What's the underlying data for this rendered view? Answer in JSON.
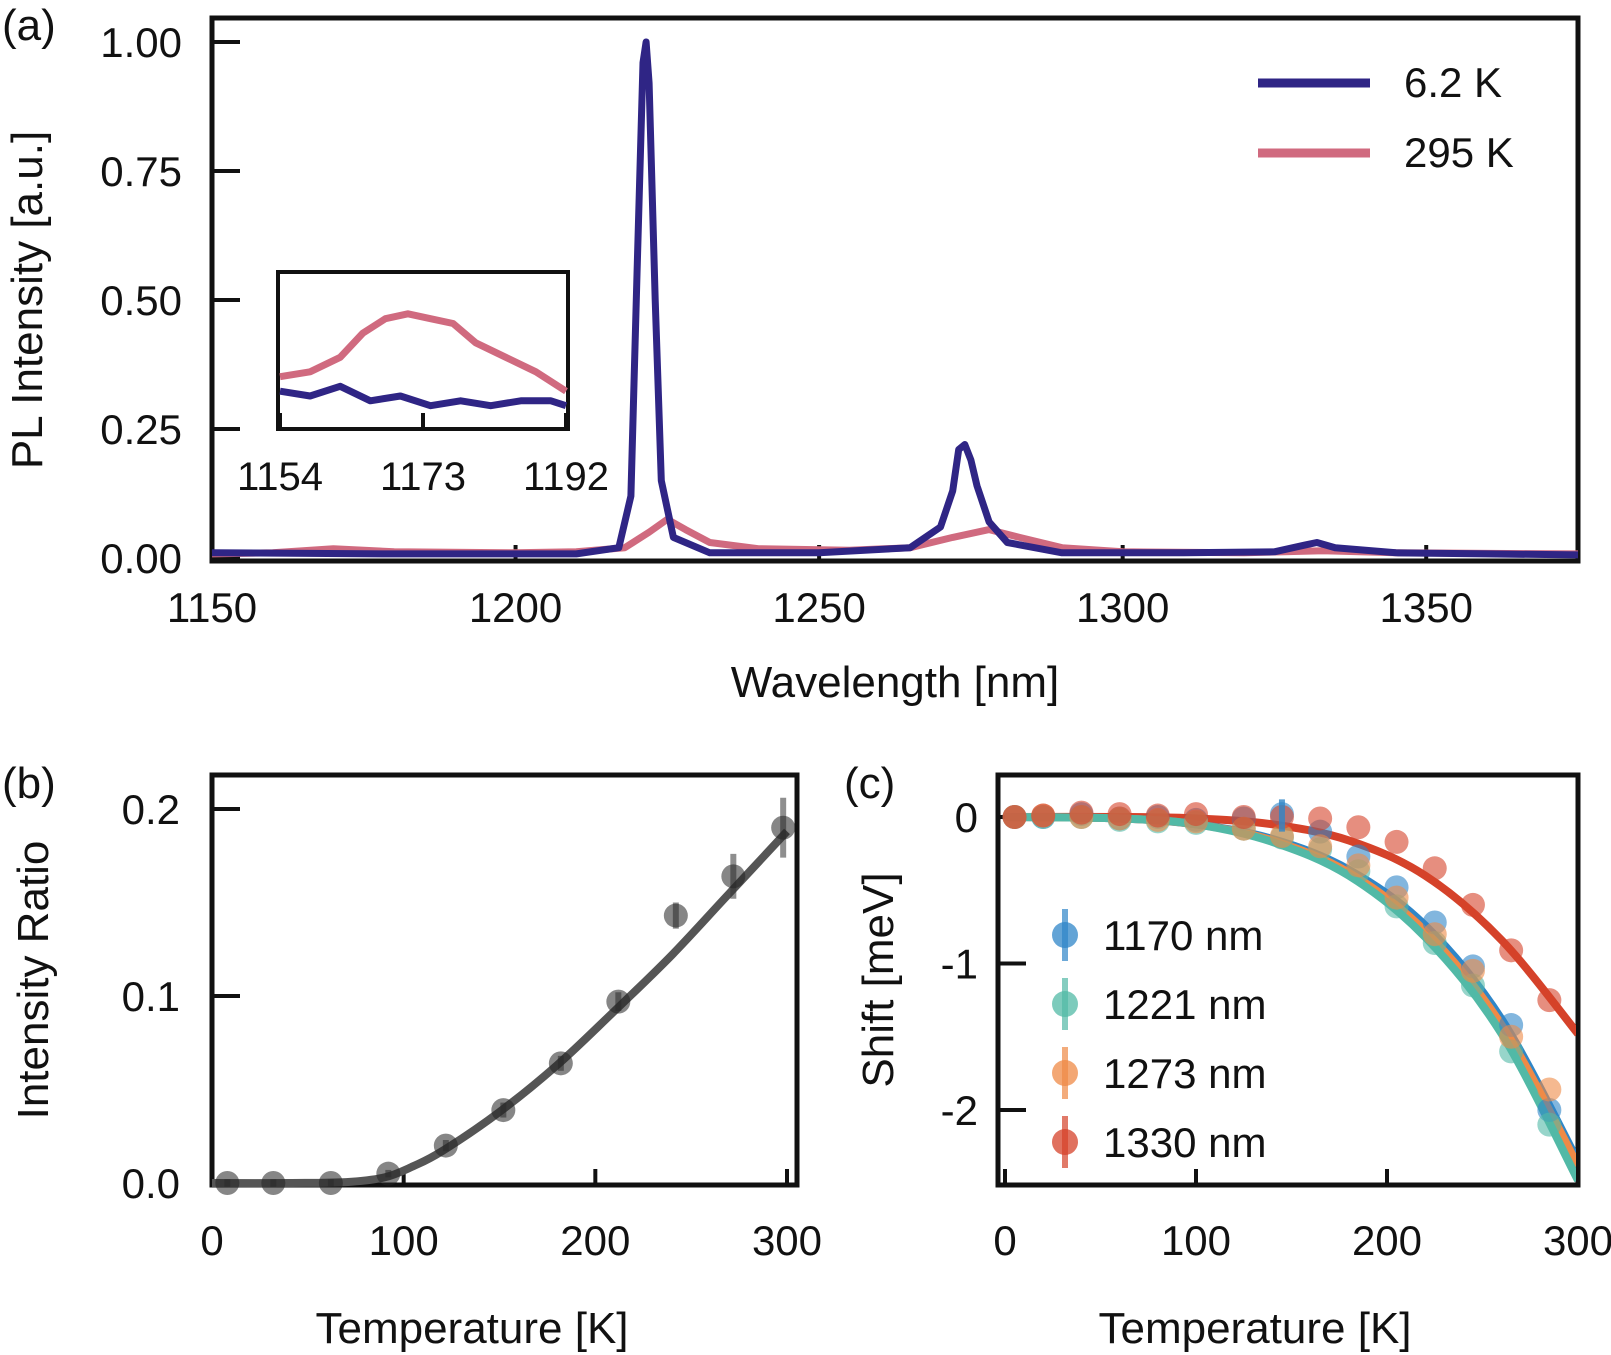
{
  "colors": {
    "series_6_2K": "#2f2585",
    "series_295K": "#d06a7f",
    "fit_b": "#555555",
    "c_1170": "#2f86c8",
    "c_1221": "#52b9a6",
    "c_1273": "#ef8a46",
    "c_1330": "#d5422a"
  },
  "chart_data": [
    {
      "panel": "(a)",
      "type": "line",
      "xlabel": "Wavelength [nm]",
      "ylabel": "PL Intensity [a.u.]",
      "xlim": [
        1150,
        1375
      ],
      "ylim": [
        0,
        1.0
      ],
      "xticks": [
        "1150",
        "1200",
        "1250",
        "1300",
        "1350"
      ],
      "yticks": [
        "0.00",
        "0.25",
        "0.50",
        "0.75",
        "1.00"
      ],
      "legend_position": "top-right",
      "series": [
        {
          "name": "6.2 K",
          "x": [
            1150,
            1180,
            1210,
            1217,
            1219,
            1220,
            1221,
            1221.5,
            1222,
            1223,
            1224,
            1226,
            1232,
            1250,
            1265,
            1270,
            1272,
            1273,
            1274,
            1275,
            1276,
            1278,
            1281,
            1290,
            1310,
            1325,
            1330,
            1332,
            1335,
            1345,
            1360,
            1375
          ],
          "y": [
            0.01,
            0.008,
            0.008,
            0.02,
            0.12,
            0.55,
            0.96,
            1.0,
            0.92,
            0.5,
            0.15,
            0.04,
            0.01,
            0.01,
            0.02,
            0.06,
            0.13,
            0.21,
            0.22,
            0.19,
            0.14,
            0.07,
            0.03,
            0.01,
            0.01,
            0.012,
            0.025,
            0.03,
            0.02,
            0.01,
            0.008,
            0.006
          ]
        },
        {
          "name": "295 K",
          "x": [
            1150,
            1160,
            1170,
            1180,
            1200,
            1210,
            1218,
            1222,
            1225,
            1228,
            1232,
            1240,
            1255,
            1265,
            1272,
            1278,
            1283,
            1290,
            1300,
            1320,
            1333,
            1345,
            1375
          ],
          "y": [
            0.008,
            0.01,
            0.018,
            0.012,
            0.01,
            0.012,
            0.02,
            0.05,
            0.075,
            0.055,
            0.03,
            0.018,
            0.015,
            0.02,
            0.04,
            0.055,
            0.04,
            0.02,
            0.012,
            0.01,
            0.014,
            0.01,
            0.008
          ]
        }
      ]
    },
    {
      "panel": "(a) inset",
      "type": "line",
      "xlim": [
        1154,
        1192
      ],
      "xticks": [
        "1154",
        "1173",
        "1192"
      ],
      "series": [
        {
          "name": "6.2 K",
          "x": [
            1154,
            1158,
            1162,
            1166,
            1170,
            1174,
            1178,
            1182,
            1186,
            1190,
            1192
          ],
          "y": [
            0.32,
            0.31,
            0.33,
            0.3,
            0.31,
            0.29,
            0.3,
            0.29,
            0.3,
            0.3,
            0.29
          ]
        },
        {
          "name": "295 K",
          "x": [
            1154,
            1158,
            1162,
            1165,
            1168,
            1171,
            1174,
            1177,
            1180,
            1184,
            1188,
            1192
          ],
          "y": [
            0.35,
            0.36,
            0.39,
            0.44,
            0.47,
            0.48,
            0.47,
            0.46,
            0.42,
            0.39,
            0.36,
            0.32
          ]
        }
      ]
    },
    {
      "panel": "(b)",
      "type": "scatter",
      "xlabel": "Temperature [K]",
      "ylabel": "Intensity Ratio",
      "xlim": [
        0,
        305
      ],
      "ylim": [
        -0.005,
        0.215
      ],
      "xticks": [
        "0",
        "100",
        "200",
        "300"
      ],
      "yticks": [
        "0.0",
        "0.1",
        "0.2"
      ],
      "points": {
        "x": [
          8,
          32,
          62,
          92,
          122,
          152,
          182,
          212,
          242,
          272,
          298
        ],
        "y": [
          0.0,
          0.0,
          0.0,
          0.005,
          0.02,
          0.039,
          0.064,
          0.097,
          0.143,
          0.164,
          0.19
        ],
        "err": [
          0.002,
          0.002,
          0.002,
          0.002,
          0.003,
          0.004,
          0.004,
          0.005,
          0.007,
          0.012,
          0.016
        ]
      },
      "fit": {
        "x": [
          0,
          40,
          70,
          90,
          105,
          120,
          150,
          180,
          210,
          240,
          270,
          300
        ],
        "y": [
          0.0,
          0.0,
          0.0005,
          0.003,
          0.009,
          0.017,
          0.038,
          0.063,
          0.092,
          0.122,
          0.155,
          0.188
        ]
      }
    },
    {
      "panel": "(c)",
      "type": "scatter",
      "xlabel": "Temperature [K]",
      "ylabel": "Shift [meV]",
      "xlim": [
        0,
        300
      ],
      "ylim": [
        -2.65,
        0.28
      ],
      "xticks": [
        "0",
        "100",
        "200",
        "300"
      ],
      "yticks": [
        "0",
        "-1",
        "-2"
      ],
      "legend_position": "center-left",
      "series": [
        {
          "name": "1170 nm",
          "x": [
            5,
            20,
            40,
            60,
            80,
            100,
            125,
            145,
            165,
            185,
            205,
            225,
            245,
            265,
            285
          ],
          "y": [
            0.0,
            0.0,
            0.02,
            -0.01,
            0.0,
            -0.02,
            -0.01,
            0.02,
            -0.1,
            -0.27,
            -0.48,
            -0.72,
            -1.02,
            -1.42,
            -2.0
          ],
          "fit_x": [
            0,
            60,
            100,
            140,
            180,
            220,
            260,
            300
          ],
          "fit_y": [
            0.0,
            -0.01,
            -0.05,
            -0.15,
            -0.36,
            -0.74,
            -1.38,
            -2.35
          ]
        },
        {
          "name": "1221 nm",
          "x": [
            5,
            20,
            40,
            60,
            80,
            100,
            125,
            145,
            165,
            185,
            205,
            225,
            245,
            265,
            285
          ],
          "y": [
            0.0,
            0.0,
            0.0,
            -0.02,
            -0.03,
            -0.04,
            -0.08,
            -0.14,
            -0.22,
            -0.37,
            -0.61,
            -0.86,
            -1.15,
            -1.6,
            -2.1
          ],
          "fit_x": [
            0,
            60,
            100,
            140,
            180,
            220,
            260,
            300
          ],
          "fit_y": [
            0.0,
            -0.01,
            -0.05,
            -0.17,
            -0.4,
            -0.82,
            -1.48,
            -2.48
          ]
        },
        {
          "name": "1273 nm",
          "x": [
            5,
            20,
            40,
            60,
            80,
            100,
            125,
            145,
            165,
            185,
            205,
            225,
            245,
            265,
            285
          ],
          "y": [
            0.0,
            0.01,
            0.0,
            -0.01,
            -0.02,
            -0.03,
            -0.08,
            -0.13,
            -0.2,
            -0.33,
            -0.55,
            -0.8,
            -1.05,
            -1.5,
            -1.86
          ],
          "fit_x": [
            0,
            60,
            100,
            140,
            180,
            220,
            260,
            300
          ],
          "fit_y": [
            0.0,
            -0.01,
            -0.05,
            -0.16,
            -0.38,
            -0.78,
            -1.42,
            -2.38
          ]
        },
        {
          "name": "1330 nm",
          "x": [
            5,
            20,
            40,
            60,
            80,
            100,
            125,
            145,
            165,
            185,
            205,
            225,
            245,
            265,
            285
          ],
          "y": [
            0.0,
            0.01,
            0.03,
            0.02,
            0.01,
            0.02,
            0.0,
            0.0,
            -0.01,
            -0.07,
            -0.17,
            -0.35,
            -0.6,
            -0.91,
            -1.25
          ],
          "fit_x": [
            0,
            60,
            100,
            140,
            180,
            220,
            260,
            300
          ],
          "fit_y": [
            0.0,
            0.0,
            -0.01,
            -0.05,
            -0.16,
            -0.4,
            -0.84,
            -1.48
          ]
        }
      ]
    }
  ],
  "panels": {
    "a": "(a)",
    "b": "(b)",
    "c": "(c)"
  },
  "legend_a": [
    "6.2 K",
    "295 K"
  ],
  "legend_c": [
    "1170 nm",
    "1221 nm",
    "1273 nm",
    "1330 nm"
  ]
}
